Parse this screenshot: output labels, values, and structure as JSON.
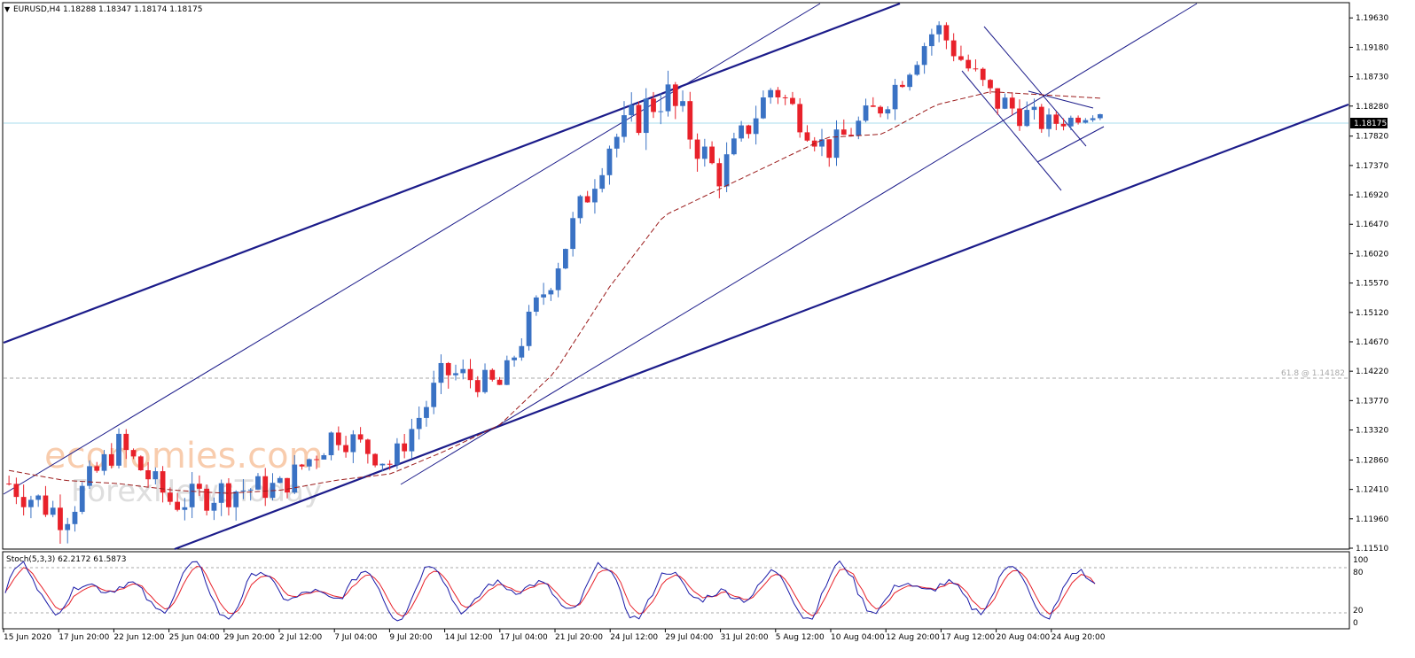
{
  "header": {
    "symbol_info": "EURUSD,H4  1.18288 1.18347 1.18174 1.18175"
  },
  "watermark": {
    "line1": "economies.com",
    "line2": "ForexNewsToday"
  },
  "price_axis": {
    "ticks": [
      "1.19630",
      "1.19180",
      "1.18730",
      "1.18280",
      "1.17820",
      "1.17370",
      "1.16920",
      "1.16470",
      "1.16020",
      "1.15570",
      "1.15120",
      "1.14670",
      "1.14220",
      "1.13770",
      "1.13320",
      "1.12860",
      "1.12410",
      "1.11960",
      "1.11510"
    ],
    "current_price_label": "1.18175"
  },
  "fib_label": "61.8 @ 1.14182",
  "stoch": {
    "label": "Stoch(5,3,3) 62.2172 61.5873",
    "levels": [
      "100",
      "80",
      "20",
      "0"
    ]
  },
  "time_axis": {
    "labels": [
      "15 Jun 2020",
      "17 Jun 20:00",
      "22 Jun 12:00",
      "25 Jun 04:00",
      "29 Jun 20:00",
      "2 Jul 12:00",
      "7 Jul 04:00",
      "9 Jul 20:00",
      "14 Jul 12:00",
      "17 Jul 04:00",
      "21 Jul 20:00",
      "24 Jul 12:00",
      "29 Jul 04:00",
      "31 Jul 20:00",
      "5 Aug 12:00",
      "10 Aug 04:00",
      "12 Aug 20:00",
      "17 Aug 12:00",
      "20 Aug 04:00",
      "24 Aug 20:00"
    ]
  },
  "colors": {
    "bull_candle": "#3a72c4",
    "bear_candle": "#e8212a",
    "trendline": "#1c1c8a",
    "moving_average": "#9b1b1b",
    "stoch_main": "#1a1aa8",
    "stoch_signal": "#e8212a",
    "price_line": "#a8dcec",
    "watermark_orange": "#f4a36b",
    "watermark_grey": "#c4c4c4"
  },
  "chart_data": {
    "type": "candlestick",
    "symbol": "EURUSD",
    "timeframe": "H4",
    "ohlc_last": {
      "open": 1.18288,
      "high": 1.18347,
      "low": 1.18174,
      "close": 1.18175
    },
    "ylim": [
      1.1151,
      1.1985
    ],
    "x": [
      "15 Jun 2020",
      "17 Jun 20:00",
      "22 Jun 12:00",
      "25 Jun 04:00",
      "29 Jun 20:00",
      "2 Jul 12:00",
      "7 Jul 04:00",
      "9 Jul 20:00",
      "14 Jul 12:00",
      "17 Jul 04:00",
      "21 Jul 20:00",
      "24 Jul 12:00",
      "29 Jul 04:00",
      "31 Jul 20:00",
      "5 Aug 12:00",
      "10 Aug 04:00",
      "12 Aug 20:00",
      "17 Aug 12:00",
      "20 Aug 04:00",
      "24 Aug 20:00",
      "25 Aug 16:00"
    ],
    "close": [
      1.125,
      1.12,
      1.131,
      1.122,
      1.124,
      1.1245,
      1.133,
      1.128,
      1.142,
      1.14,
      1.158,
      1.177,
      1.185,
      1.172,
      1.186,
      1.176,
      1.183,
      1.195,
      1.184,
      1.18,
      1.18175
    ],
    "high": [
      1.134,
      1.128,
      1.135,
      1.128,
      1.13,
      1.13,
      1.137,
      1.132,
      1.146,
      1.144,
      1.162,
      1.181,
      1.191,
      1.18,
      1.191,
      1.18,
      1.186,
      1.197,
      1.188,
      1.184,
      1.18347
    ],
    "low": [
      1.122,
      1.116,
      1.125,
      1.118,
      1.118,
      1.121,
      1.126,
      1.124,
      1.134,
      1.137,
      1.15,
      1.17,
      1.174,
      1.169,
      1.18,
      1.171,
      1.176,
      1.188,
      1.176,
      1.176,
      1.18174
    ],
    "moving_average": [
      1.127,
      1.1255,
      1.125,
      1.124,
      1.1235,
      1.124,
      1.1255,
      1.1265,
      1.13,
      1.134,
      1.142,
      1.155,
      1.166,
      1.17,
      1.174,
      1.178,
      1.1785,
      1.183,
      1.185,
      1.1845,
      1.184
    ],
    "fib_level": {
      "label": "61.8",
      "value": 1.14182
    },
    "current_price": 1.18175,
    "stochastic": {
      "params": "5,3,3",
      "main": 62.2172,
      "signal": 61.5873,
      "levels": [
        80,
        20
      ],
      "range": [
        0,
        100
      ]
    }
  }
}
